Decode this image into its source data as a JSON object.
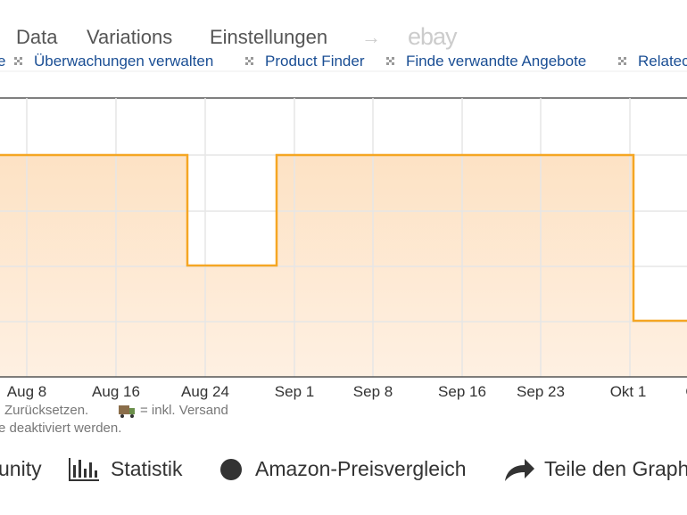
{
  "nav": {
    "tabs": [
      "Data",
      "Variations",
      "Einstellungen"
    ],
    "arrow": "→",
    "ebay": "ebay"
  },
  "links": [
    "e",
    "Überwachungen verwalten",
    "Product Finder",
    "Finde verwandte Angebote",
    "Relatec"
  ],
  "chart": {
    "x_labels": [
      "Aug 8",
      "Aug 16",
      "Aug 24",
      "Sep 1",
      "Sep 8",
      "Sep 16",
      "Sep 23",
      "Okt 1",
      "O"
    ]
  },
  "notes": {
    "reset": "Zurücksetzen.",
    "shipping": "= inkl. Versand",
    "disabled": "e deaktiviert werden."
  },
  "actions": [
    "unity",
    "Statistik",
    "Amazon-Preisvergleich",
    "Teile den Graph"
  ]
}
